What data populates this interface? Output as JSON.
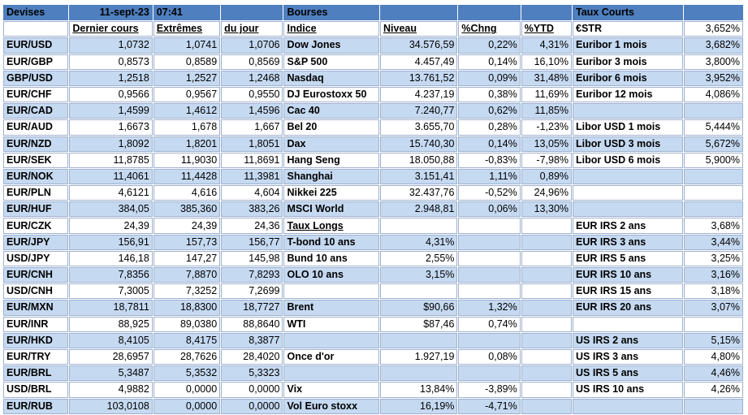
{
  "header": {
    "devises": "Devises",
    "date": "11-sept-23",
    "time": "07:41",
    "bourses": "Bourses",
    "taux_courts": "Taux Courts"
  },
  "subheader": {
    "dernier_cours": "Dernier cours",
    "extremes": "Extrêmes",
    "du_jour": "du jour",
    "indice": "Indice",
    "niveau": "Niveau",
    "chng": "%Chng",
    "ytd": "%YTD",
    "estr_label": "€STR",
    "estr_value": "3,652%"
  },
  "rows": [
    [
      "EUR/USD",
      "1,0732",
      "1,0741",
      "1,0706",
      "Dow Jones",
      "34.576,59",
      "0,22%",
      "4,31%",
      "Euribor 1 mois",
      "3,682%"
    ],
    [
      "EUR/GBP",
      "0,8573",
      "0,8589",
      "0,8569",
      "S&P 500",
      "4.457,49",
      "0,14%",
      "16,10%",
      "Euribor 3 mois",
      "3,800%"
    ],
    [
      "GBP/USD",
      "1,2518",
      "1,2527",
      "1,2468",
      "Nasdaq",
      "13.761,52",
      "0,09%",
      "31,48%",
      "Euribor 6 mois",
      "3,952%"
    ],
    [
      "EUR/CHF",
      "0,9566",
      "0,9567",
      "0,9550",
      "DJ Eurostoxx 50",
      "4.237,19",
      "0,38%",
      "11,69%",
      "Euribor 12 mois",
      "4,086%"
    ],
    [
      "EUR/CAD",
      "1,4599",
      "1,4612",
      "1,4596",
      "Cac 40",
      "7.240,77",
      "0,62%",
      "11,85%",
      "",
      ""
    ],
    [
      "EUR/AUD",
      "1,6673",
      "1,678",
      "1,667",
      "Bel 20",
      "3.655,70",
      "0,28%",
      "-1,23%",
      "Libor USD 1 mois",
      "5,444%"
    ],
    [
      "EUR/NZD",
      "1,8092",
      "1,8201",
      "1,8051",
      "Dax",
      "15.740,30",
      "0,14%",
      "13,05%",
      "Libor USD 3 mois",
      "5,672%"
    ],
    [
      "EUR/SEK",
      "11,8785",
      "11,9030",
      "11,8691",
      "Hang Seng",
      "18.050,88",
      "-0,83%",
      "-7,98%",
      "Libor USD 6 mois",
      "5,900%"
    ],
    [
      "EUR/NOK",
      "11,4061",
      "11,4428",
      "11,3981",
      "Shanghai",
      "3.151,41",
      "1,11%",
      "0,89%",
      "",
      ""
    ],
    [
      "EUR/PLN",
      "4,6121",
      "4,616",
      "4,604",
      "Nikkei 225",
      "32.437,76",
      "-0,52%",
      "24,96%",
      "",
      ""
    ],
    [
      "EUR/HUF",
      "384,05",
      "385,360",
      "383,26",
      "MSCI World",
      "2.948,81",
      "0,06%",
      "13,30%",
      "",
      ""
    ],
    [
      "EUR/CZK",
      "24,39",
      "24,39",
      "24,36",
      "Taux Longs",
      "",
      "",
      "",
      "EUR IRS 2 ans",
      "3,68%"
    ],
    [
      "EUR/JPY",
      "156,91",
      "157,73",
      "156,77",
      "T-bond 10 ans",
      "4,31%",
      "",
      "",
      "EUR IRS 3 ans",
      "3,44%"
    ],
    [
      "USD/JPY",
      "146,18",
      "147,27",
      "145,98",
      "Bund 10 ans",
      "2,55%",
      "",
      "",
      "EUR IRS 5 ans",
      "3,25%"
    ],
    [
      "EUR/CNH",
      "7,8356",
      "7,8870",
      "7,8293",
      "OLO 10 ans",
      "3,15%",
      "",
      "",
      "EUR IRS 10 ans",
      "3,16%"
    ],
    [
      "USD/CNH",
      "7,3005",
      "7,3252",
      "7,2699",
      "",
      "",
      "",
      "",
      "EUR IRS 15 ans",
      "3,18%"
    ],
    [
      "EUR/MXN",
      "18,7811",
      "18,8300",
      "18,7727",
      "Brent",
      "$90,66",
      "1,32%",
      "",
      "EUR IRS 20 ans",
      "3,07%"
    ],
    [
      "EUR/INR",
      "88,925",
      "89,0380",
      "88,8640",
      "WTI",
      "$87,46",
      "0,74%",
      "",
      "",
      ""
    ],
    [
      "EUR/HKD",
      "8,4105",
      "8,4175",
      "8,3877",
      "",
      "",
      "",
      "",
      "US IRS 2 ans",
      "5,15%"
    ],
    [
      "EUR/TRY",
      "28,6957",
      "28,7626",
      "28,4020",
      "Once d'or",
      "1.927,19",
      "0,08%",
      "",
      "US IRS 3 ans",
      "4,80%"
    ],
    [
      "EUR/BRL",
      "5,3487",
      "5,3532",
      "5,3323",
      "",
      "",
      "",
      "",
      "US IRS 5 ans",
      "4,46%"
    ],
    [
      "USD/BRL",
      "4,9882",
      "0,0000",
      "0,0000",
      "Vix",
      "13,84%",
      "-3,89%",
      "",
      "US IRS 10 ans",
      "4,26%"
    ],
    [
      "EUR/RUB",
      "103,0108",
      "0,0000",
      "0,0000",
      "Vol Euro stoxx",
      "16,19%",
      "-4,71%",
      "",
      "",
      ""
    ]
  ],
  "colors": {
    "header": "#4f7fbf",
    "alt_row": "#c5d9f1",
    "border": "#9fb2cf"
  }
}
